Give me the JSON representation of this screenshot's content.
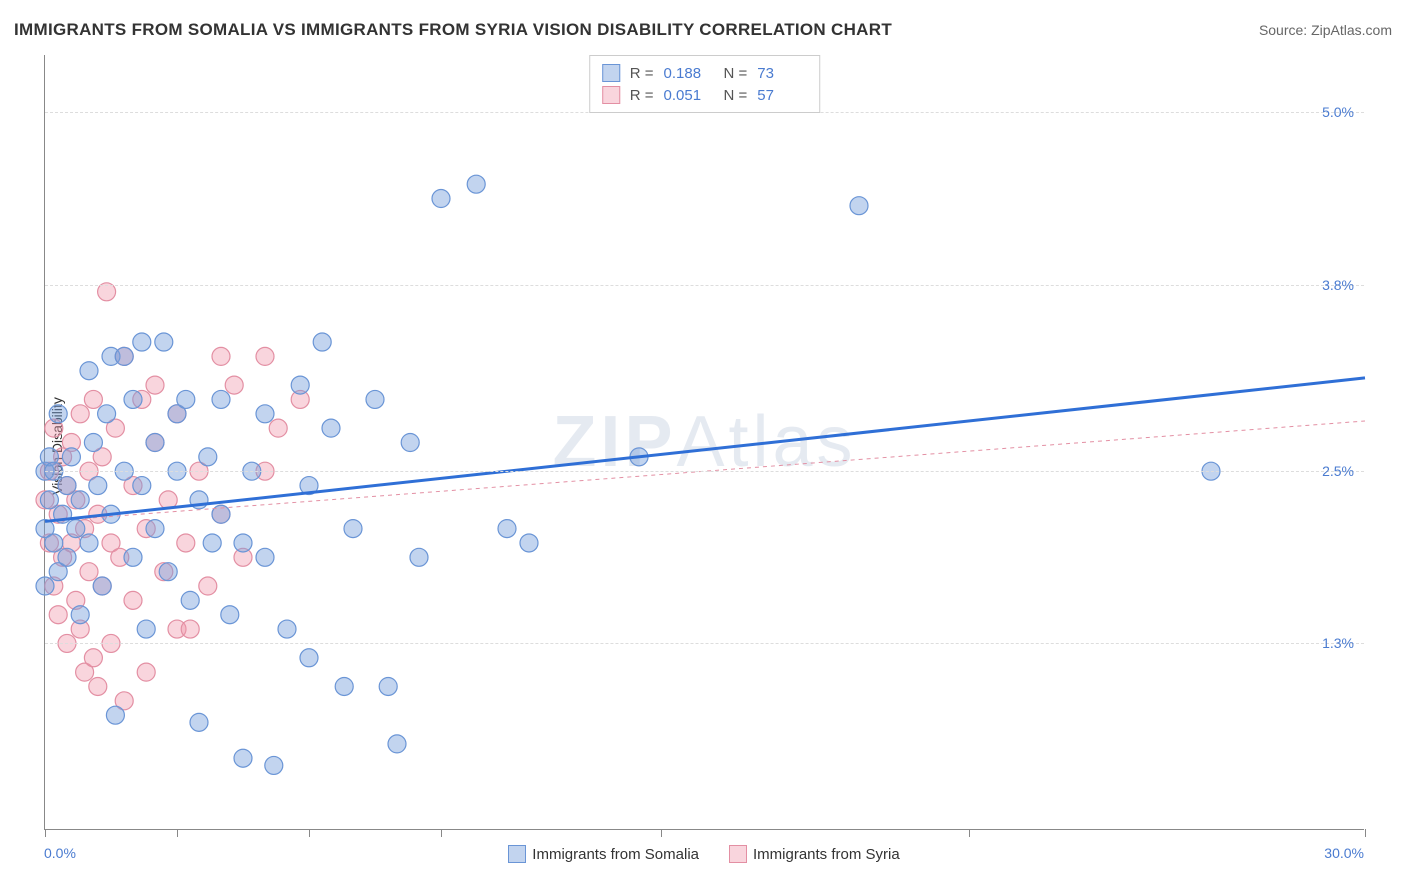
{
  "title": "IMMIGRANTS FROM SOMALIA VS IMMIGRANTS FROM SYRIA VISION DISABILITY CORRELATION CHART",
  "source": "Source: ZipAtlas.com",
  "ylabel": "Vision Disability",
  "watermark_prefix": "ZIP",
  "watermark_suffix": "Atlas",
  "chart": {
    "type": "scatter",
    "background_color": "#ffffff",
    "grid_color": "#dddddd",
    "axis_color": "#888888",
    "label_color": "#4a7bd0",
    "label_fontsize": 14,
    "title_fontsize": 17,
    "xlim": [
      0.0,
      30.0
    ],
    "ylim": [
      0.0,
      5.4
    ],
    "ytick_values": [
      1.3,
      2.5,
      3.8,
      5.0
    ],
    "ytick_labels": [
      "1.3%",
      "2.5%",
      "3.8%",
      "5.0%"
    ],
    "xtick_values": [
      0,
      3,
      6,
      9,
      14,
      21,
      30
    ],
    "xmin_label": "0.0%",
    "xmax_label": "30.0%",
    "marker_radius": 9,
    "marker_stroke_width": 1.2,
    "trend_line_width_a": 3,
    "trend_line_width_b": 1,
    "trend_line_b_dash": "4,4",
    "series": [
      {
        "key": "somalia",
        "label": "Immigrants from Somalia",
        "fill": "rgba(120,160,220,0.45)",
        "stroke": "#6a95d6",
        "line_color": "#2f6fd6",
        "R": "0.188",
        "N": "73",
        "trend": {
          "x1": 0.0,
          "y1": 2.15,
          "x2": 30.0,
          "y2": 3.15
        },
        "points": [
          [
            0.0,
            2.5
          ],
          [
            0.0,
            2.1
          ],
          [
            0.1,
            2.3
          ],
          [
            0.1,
            2.6
          ],
          [
            0.2,
            2.0
          ],
          [
            0.2,
            2.5
          ],
          [
            0.3,
            1.8
          ],
          [
            0.3,
            2.9
          ],
          [
            0.4,
            2.2
          ],
          [
            0.5,
            2.4
          ],
          [
            0.5,
            1.9
          ],
          [
            0.6,
            2.6
          ],
          [
            0.7,
            2.1
          ],
          [
            0.8,
            2.3
          ],
          [
            0.8,
            1.5
          ],
          [
            1.0,
            3.2
          ],
          [
            1.0,
            2.0
          ],
          [
            1.1,
            2.7
          ],
          [
            1.2,
            2.4
          ],
          [
            1.3,
            1.7
          ],
          [
            1.4,
            2.9
          ],
          [
            1.5,
            3.3
          ],
          [
            1.5,
            2.2
          ],
          [
            1.6,
            0.8
          ],
          [
            1.8,
            2.5
          ],
          [
            1.8,
            3.3
          ],
          [
            2.0,
            3.0
          ],
          [
            2.0,
            1.9
          ],
          [
            2.2,
            2.4
          ],
          [
            2.2,
            3.4
          ],
          [
            2.3,
            1.4
          ],
          [
            2.5,
            2.7
          ],
          [
            2.5,
            2.1
          ],
          [
            2.7,
            3.4
          ],
          [
            2.8,
            1.8
          ],
          [
            3.0,
            2.9
          ],
          [
            3.0,
            2.5
          ],
          [
            3.2,
            3.0
          ],
          [
            3.3,
            1.6
          ],
          [
            3.5,
            2.3
          ],
          [
            3.5,
            0.75
          ],
          [
            3.7,
            2.6
          ],
          [
            3.8,
            2.0
          ],
          [
            4.0,
            2.2
          ],
          [
            4.0,
            3.0
          ],
          [
            4.2,
            1.5
          ],
          [
            4.5,
            2.0
          ],
          [
            4.5,
            0.5
          ],
          [
            4.7,
            2.5
          ],
          [
            5.0,
            2.9
          ],
          [
            5.0,
            1.9
          ],
          [
            5.2,
            0.45
          ],
          [
            5.5,
            1.4
          ],
          [
            5.8,
            3.1
          ],
          [
            6.0,
            2.4
          ],
          [
            6.0,
            1.2
          ],
          [
            6.3,
            3.4
          ],
          [
            6.5,
            2.8
          ],
          [
            6.8,
            1.0
          ],
          [
            7.0,
            2.1
          ],
          [
            7.5,
            3.0
          ],
          [
            7.8,
            1.0
          ],
          [
            8.0,
            0.6
          ],
          [
            8.3,
            2.7
          ],
          [
            8.5,
            1.9
          ],
          [
            9.0,
            4.4
          ],
          [
            9.8,
            4.5
          ],
          [
            10.5,
            2.1
          ],
          [
            11.0,
            2.0
          ],
          [
            13.5,
            2.6
          ],
          [
            18.5,
            4.35
          ],
          [
            26.5,
            2.5
          ],
          [
            0.0,
            1.7
          ]
        ]
      },
      {
        "key": "syria",
        "label": "Immigrants from Syria",
        "fill": "rgba(240,150,170,0.40)",
        "stroke": "#e38fa3",
        "line_color": "#e38fa3",
        "R": "0.051",
        "N": "57",
        "trend": {
          "x1": 0.0,
          "y1": 2.15,
          "x2": 30.0,
          "y2": 2.85
        },
        "points": [
          [
            0.0,
            2.3
          ],
          [
            0.1,
            2.0
          ],
          [
            0.1,
            2.5
          ],
          [
            0.2,
            1.7
          ],
          [
            0.2,
            2.8
          ],
          [
            0.3,
            2.2
          ],
          [
            0.3,
            1.5
          ],
          [
            0.4,
            2.6
          ],
          [
            0.4,
            1.9
          ],
          [
            0.5,
            2.4
          ],
          [
            0.5,
            1.3
          ],
          [
            0.6,
            2.7
          ],
          [
            0.6,
            2.0
          ],
          [
            0.7,
            1.6
          ],
          [
            0.7,
            2.3
          ],
          [
            0.8,
            1.4
          ],
          [
            0.8,
            2.9
          ],
          [
            0.9,
            2.1
          ],
          [
            0.9,
            1.1
          ],
          [
            1.0,
            2.5
          ],
          [
            1.0,
            1.8
          ],
          [
            1.1,
            3.0
          ],
          [
            1.1,
            1.2
          ],
          [
            1.2,
            2.2
          ],
          [
            1.2,
            1.0
          ],
          [
            1.3,
            2.6
          ],
          [
            1.3,
            1.7
          ],
          [
            1.4,
            3.75
          ],
          [
            1.5,
            2.0
          ],
          [
            1.5,
            1.3
          ],
          [
            1.6,
            2.8
          ],
          [
            1.7,
            1.9
          ],
          [
            1.8,
            3.3
          ],
          [
            1.8,
            0.9
          ],
          [
            2.0,
            2.4
          ],
          [
            2.0,
            1.6
          ],
          [
            2.2,
            3.0
          ],
          [
            2.3,
            2.1
          ],
          [
            2.3,
            1.1
          ],
          [
            2.5,
            2.7
          ],
          [
            2.5,
            3.1
          ],
          [
            2.7,
            1.8
          ],
          [
            2.8,
            2.3
          ],
          [
            3.0,
            1.4
          ],
          [
            3.0,
            2.9
          ],
          [
            3.2,
            2.0
          ],
          [
            3.3,
            1.4
          ],
          [
            3.5,
            2.5
          ],
          [
            3.7,
            1.7
          ],
          [
            4.0,
            3.3
          ],
          [
            4.0,
            2.2
          ],
          [
            4.3,
            3.1
          ],
          [
            4.5,
            1.9
          ],
          [
            5.0,
            3.3
          ],
          [
            5.0,
            2.5
          ],
          [
            5.3,
            2.8
          ],
          [
            5.8,
            3.0
          ]
        ]
      }
    ],
    "legend_position": "top-center",
    "stat_legend_labels": {
      "R": "R  =",
      "N": "N  ="
    }
  }
}
